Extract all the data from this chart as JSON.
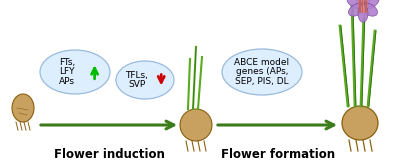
{
  "bg_color": "#ffffff",
  "arrow_color": "#3d7a1a",
  "ellipse_color": "#ddeeff",
  "ellipse_edge_color": "#99bbdd",
  "text_color": "#000000",
  "up_arrow_color": "#00bb00",
  "down_arrow_color": "#cc0000",
  "label_fontsize": 8.5,
  "ellipse_fontsize": 6.5,
  "flower_induction_label": "Flower induction",
  "flower_formation_label": "Flower formation",
  "e1_lines": [
    "FTs,",
    "LFY",
    "APs"
  ],
  "e2_lines": [
    "TFLs,",
    "SVP"
  ],
  "e3_lines": [
    "ABCE model",
    "genes (APs,",
    "SEP, PIS, DL"
  ],
  "bulb_color": "#c8a060",
  "bulb_edge": "#8b6010",
  "root_color": "#8b6010",
  "stem_color": "#5aaa20",
  "stem_dark": "#2d6e1a",
  "petal_color": "#b080cc",
  "petal_edge": "#7a40a0",
  "stamen_color": "#dd6010"
}
